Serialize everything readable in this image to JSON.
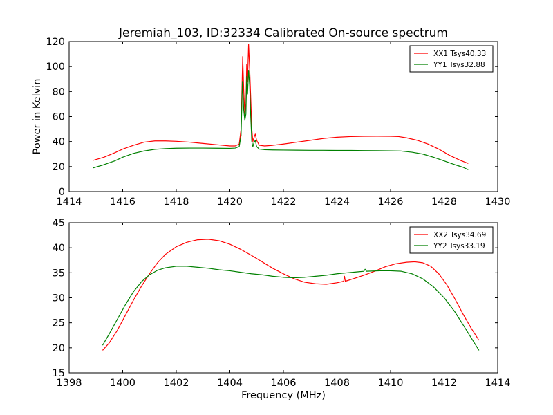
{
  "figure_title": "Jeremiah_103, ID:32334 Calibrated On-source spectrum",
  "chart_data": [
    {
      "type": "line",
      "title": "Jeremiah_103, ID:32334 Calibrated On-source spectrum",
      "xlabel": "",
      "ylabel": "Power in Kelvin",
      "xlim": [
        1414,
        1430
      ],
      "ylim": [
        0,
        120
      ],
      "xticks": [
        "1414",
        "1416",
        "1418",
        "1420",
        "1422",
        "1424",
        "1426",
        "1428",
        "1430"
      ],
      "yticks": [
        "0",
        "20",
        "40",
        "60",
        "80",
        "100",
        "120"
      ],
      "grid": false,
      "legend_position": "top-right",
      "series": [
        {
          "name": "XX1 Tsys40.33",
          "color": "#ff0000",
          "points": [
            [
              1414.9,
              25
            ],
            [
              1415.3,
              27.5
            ],
            [
              1415.7,
              31
            ],
            [
              1416.0,
              34
            ],
            [
              1416.4,
              37
            ],
            [
              1416.8,
              39.5
            ],
            [
              1417.2,
              40.5
            ],
            [
              1417.6,
              40.5
            ],
            [
              1418.0,
              40.2
            ],
            [
              1418.5,
              39.5
            ],
            [
              1419.0,
              38.5
            ],
            [
              1419.5,
              37.5
            ],
            [
              1420.0,
              36.5
            ],
            [
              1420.2,
              36.5
            ],
            [
              1420.35,
              38
            ],
            [
              1420.42,
              50
            ],
            [
              1420.48,
              108
            ],
            [
              1420.52,
              80
            ],
            [
              1420.56,
              62
            ],
            [
              1420.6,
              70
            ],
            [
              1420.63,
              102
            ],
            [
              1420.66,
              88
            ],
            [
              1420.7,
              118
            ],
            [
              1420.74,
              98
            ],
            [
              1420.78,
              75
            ],
            [
              1420.82,
              50
            ],
            [
              1420.86,
              40
            ],
            [
              1420.9,
              43
            ],
            [
              1420.95,
              46
            ],
            [
              1421.0,
              41
            ],
            [
              1421.1,
              37
            ],
            [
              1421.3,
              36.5
            ],
            [
              1421.6,
              37
            ],
            [
              1422.0,
              38
            ],
            [
              1422.5,
              39.5
            ],
            [
              1423.0,
              41
            ],
            [
              1423.5,
              42.5
            ],
            [
              1424.0,
              43.5
            ],
            [
              1424.5,
              44
            ],
            [
              1425.0,
              44.2
            ],
            [
              1425.5,
              44.3
            ],
            [
              1426.0,
              44.2
            ],
            [
              1426.3,
              44
            ],
            [
              1426.6,
              43
            ],
            [
              1427.0,
              41
            ],
            [
              1427.4,
              38
            ],
            [
              1427.8,
              34
            ],
            [
              1428.2,
              29
            ],
            [
              1428.6,
              25
            ],
            [
              1428.9,
              22.5
            ]
          ]
        },
        {
          "name": "YY1 Tsys32.88",
          "color": "#008000",
          "points": [
            [
              1414.9,
              19
            ],
            [
              1415.3,
              21.5
            ],
            [
              1415.7,
              24.5
            ],
            [
              1416.0,
              27.5
            ],
            [
              1416.4,
              30.5
            ],
            [
              1416.8,
              32.5
            ],
            [
              1417.2,
              33.8
            ],
            [
              1417.6,
              34.4
            ],
            [
              1418.0,
              34.7
            ],
            [
              1418.5,
              34.8
            ],
            [
              1419.0,
              34.8
            ],
            [
              1419.5,
              34.7
            ],
            [
              1420.0,
              34.6
            ],
            [
              1420.2,
              34.8
            ],
            [
              1420.35,
              36
            ],
            [
              1420.42,
              45
            ],
            [
              1420.47,
              88
            ],
            [
              1420.52,
              65
            ],
            [
              1420.56,
              57
            ],
            [
              1420.6,
              62
            ],
            [
              1420.63,
              92
            ],
            [
              1420.66,
              78
            ],
            [
              1420.7,
              97
            ],
            [
              1420.74,
              85
            ],
            [
              1420.78,
              60
            ],
            [
              1420.82,
              40
            ],
            [
              1420.86,
              36
            ],
            [
              1420.9,
              39
            ],
            [
              1420.95,
              41
            ],
            [
              1421.0,
              36
            ],
            [
              1421.1,
              34
            ],
            [
              1421.3,
              33.5
            ],
            [
              1421.6,
              33.3
            ],
            [
              1422.0,
              33.2
            ],
            [
              1422.5,
              33.1
            ],
            [
              1423.0,
              33.0
            ],
            [
              1423.5,
              33.0
            ],
            [
              1424.0,
              32.9
            ],
            [
              1424.5,
              32.9
            ],
            [
              1425.0,
              32.8
            ],
            [
              1425.5,
              32.7
            ],
            [
              1426.0,
              32.6
            ],
            [
              1426.4,
              32.4
            ],
            [
              1426.8,
              31.5
            ],
            [
              1427.2,
              30
            ],
            [
              1427.6,
              27.5
            ],
            [
              1428.0,
              24.5
            ],
            [
              1428.4,
              21.5
            ],
            [
              1428.7,
              19.5
            ],
            [
              1428.9,
              17.5
            ]
          ]
        }
      ]
    },
    {
      "type": "line",
      "title": "",
      "xlabel": "Frequency (MHz)",
      "ylabel": "",
      "xlim": [
        1398,
        1414
      ],
      "ylim": [
        15,
        45
      ],
      "xticks": [
        "1398",
        "1400",
        "1402",
        "1404",
        "1406",
        "1408",
        "1410",
        "1412",
        "1414"
      ],
      "yticks": [
        "15",
        "20",
        "25",
        "30",
        "35",
        "40",
        "45"
      ],
      "grid": false,
      "legend_position": "top-right",
      "series": [
        {
          "name": "XX2 Tsys34.69",
          "color": "#ff0000",
          "points": [
            [
              1399.25,
              19.5
            ],
            [
              1399.5,
              21
            ],
            [
              1399.8,
              23.5
            ],
            [
              1400.1,
              26.5
            ],
            [
              1400.4,
              29.5
            ],
            [
              1400.7,
              32.3
            ],
            [
              1401.0,
              34.8
            ],
            [
              1401.3,
              37
            ],
            [
              1401.6,
              38.7
            ],
            [
              1402.0,
              40.2
            ],
            [
              1402.4,
              41.1
            ],
            [
              1402.8,
              41.6
            ],
            [
              1403.2,
              41.7
            ],
            [
              1403.6,
              41.4
            ],
            [
              1404.0,
              40.7
            ],
            [
              1404.4,
              39.7
            ],
            [
              1404.8,
              38.5
            ],
            [
              1405.2,
              37.2
            ],
            [
              1405.6,
              35.9
            ],
            [
              1406.0,
              34.8
            ],
            [
              1406.4,
              33.8
            ],
            [
              1406.8,
              33.1
            ],
            [
              1407.2,
              32.8
            ],
            [
              1407.6,
              32.7
            ],
            [
              1408.0,
              33.0
            ],
            [
              1408.25,
              33.3
            ],
            [
              1408.28,
              34.3
            ],
            [
              1408.31,
              33.3
            ],
            [
              1408.6,
              33.8
            ],
            [
              1409.0,
              34.5
            ],
            [
              1409.4,
              35.3
            ],
            [
              1409.8,
              36.2
            ],
            [
              1410.2,
              36.8
            ],
            [
              1410.6,
              37.1
            ],
            [
              1410.9,
              37.2
            ],
            [
              1411.2,
              37
            ],
            [
              1411.5,
              36.3
            ],
            [
              1411.8,
              34.8
            ],
            [
              1412.1,
              32.6
            ],
            [
              1412.4,
              29.8
            ],
            [
              1412.7,
              26.8
            ],
            [
              1413.0,
              24
            ],
            [
              1413.3,
              21.5
            ]
          ]
        },
        {
          "name": "YY2 Tsys33.19",
          "color": "#008000",
          "points": [
            [
              1399.25,
              20.5
            ],
            [
              1399.5,
              22.8
            ],
            [
              1399.8,
              25.7
            ],
            [
              1400.1,
              28.6
            ],
            [
              1400.4,
              31.2
            ],
            [
              1400.7,
              33.2
            ],
            [
              1401.0,
              34.6
            ],
            [
              1401.3,
              35.5
            ],
            [
              1401.6,
              36.0
            ],
            [
              1402.0,
              36.3
            ],
            [
              1402.4,
              36.3
            ],
            [
              1402.8,
              36.1
            ],
            [
              1403.2,
              35.9
            ],
            [
              1403.6,
              35.6
            ],
            [
              1404.0,
              35.4
            ],
            [
              1404.4,
              35.1
            ],
            [
              1404.8,
              34.8
            ],
            [
              1405.2,
              34.6
            ],
            [
              1405.6,
              34.3
            ],
            [
              1406.0,
              34.1
            ],
            [
              1406.4,
              34.0
            ],
            [
              1406.8,
              34.1
            ],
            [
              1407.2,
              34.3
            ],
            [
              1407.6,
              34.5
            ],
            [
              1408.0,
              34.8
            ],
            [
              1408.4,
              35.0
            ],
            [
              1408.8,
              35.2
            ],
            [
              1409.0,
              35.3
            ],
            [
              1409.05,
              35.7
            ],
            [
              1409.1,
              35.3
            ],
            [
              1409.6,
              35.4
            ],
            [
              1410.0,
              35.4
            ],
            [
              1410.4,
              35.3
            ],
            [
              1410.8,
              34.8
            ],
            [
              1411.2,
              33.8
            ],
            [
              1411.6,
              32.2
            ],
            [
              1412.0,
              30
            ],
            [
              1412.4,
              27.2
            ],
            [
              1412.8,
              23.8
            ],
            [
              1413.3,
              19.5
            ]
          ]
        }
      ]
    }
  ]
}
